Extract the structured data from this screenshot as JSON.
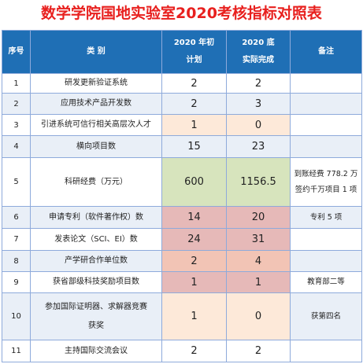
{
  "title": "数学学院国地实验室2020考核指标对照表",
  "table": {
    "header": [
      "序号",
      "类  别",
      [
        "2020 年初",
        "计划"
      ],
      [
        "2020 底",
        "实际完成"
      ],
      "备注"
    ],
    "rows": [
      [
        "1",
        "研发更新验证系统",
        "2",
        "2",
        ""
      ],
      [
        "2",
        "应用技术产品开发数",
        "2",
        "3",
        ""
      ],
      [
        "3",
        "引进系统可信行相关高层次人才",
        "1",
        "0",
        ""
      ],
      [
        "4",
        "横向项目数",
        "15",
        "23",
        ""
      ],
      [
        "5",
        "科研经费（万元）",
        "600",
        "1156.5",
        [
          "到账经费 778.2 万",
          "签约千万项目 1 项"
        ]
      ],
      [
        "6",
        "申请专利（软件著作权）数",
        "14",
        "20",
        "专利 5 项"
      ],
      [
        "7",
        "发表论文（SCI、EI）数",
        "24",
        "31",
        ""
      ],
      [
        "8",
        "产学研合作单位数",
        "2",
        "4",
        ""
      ],
      [
        "9",
        "获省部级科技奖励项目数",
        "1",
        "1",
        "教育部二等"
      ],
      [
        "10",
        [
          "参加国际证明器、求解器竞赛",
          "获奖"
        ],
        "1",
        "0",
        "获第四名"
      ],
      [
        "11",
        "主持国际交流会议",
        "2",
        "2",
        ""
      ]
    ]
  }
}
